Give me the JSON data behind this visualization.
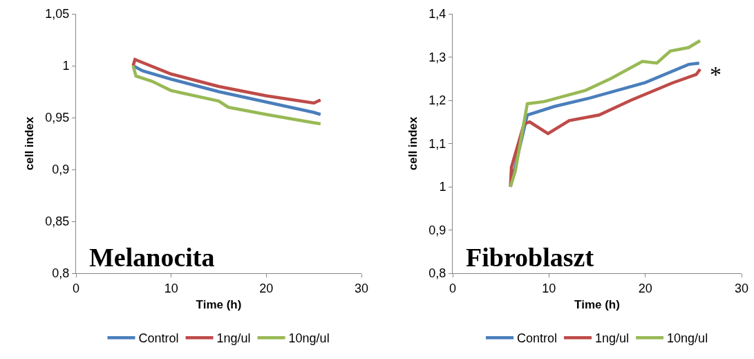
{
  "chart_data": [
    {
      "type": "line",
      "xlabel": "Time (h)",
      "ylabel": "cell index",
      "annotations": [
        "Melanocita"
      ],
      "legend": "bottom",
      "grid": false,
      "marker": "none",
      "line_style": "solid",
      "xlim": [
        0,
        30
      ],
      "xticks": [
        0,
        10,
        20,
        30
      ],
      "ylim": [
        0.8,
        1.05
      ],
      "yticks": [
        {
          "value": 0.8,
          "label": "0,8"
        },
        {
          "value": 0.85,
          "label": "0,85"
        },
        {
          "value": 0.9,
          "label": "0,9"
        },
        {
          "value": 0.95,
          "label": "0,95"
        },
        {
          "value": 1,
          "label": "1"
        },
        {
          "value": 1.05,
          "label": "1,05"
        }
      ],
      "series": [
        {
          "name": "Control",
          "color": "#4a7ebb",
          "x": [
            6,
            7,
            10,
            15,
            20,
            25,
            25.7
          ],
          "values": [
            1.0,
            0.995,
            0.987,
            0.975,
            0.965,
            0.955,
            0.953
          ]
        },
        {
          "name": "1ng/ul",
          "color": "#be4b48",
          "x": [
            6,
            6.2,
            7,
            10,
            15,
            20,
            25,
            25.7
          ],
          "values": [
            1.0,
            1.006,
            1.003,
            0.992,
            0.98,
            0.971,
            0.964,
            0.967
          ]
        },
        {
          "name": "10ng/ul",
          "color": "#98b954",
          "x": [
            6,
            6.3,
            8,
            10,
            15,
            16,
            20,
            25,
            25.7
          ],
          "values": [
            1.0,
            0.99,
            0.985,
            0.976,
            0.966,
            0.96,
            0.953,
            0.945,
            0.944
          ]
        }
      ]
    },
    {
      "type": "line",
      "xlabel": "Time (h)",
      "ylabel": "cell index",
      "annotations": [
        "Fibroblaszt",
        {
          "text": "*",
          "x": 25.7,
          "y": 1.26
        }
      ],
      "legend": "bottom",
      "grid": false,
      "marker": "none",
      "line_style": "solid",
      "xlim": [
        0,
        30
      ],
      "xticks": [
        0,
        10,
        20,
        30
      ],
      "ylim": [
        0.8,
        1.4
      ],
      "yticks": [
        {
          "value": 0.8,
          "label": "0,8"
        },
        {
          "value": 0.9,
          "label": "0,9"
        },
        {
          "value": 1,
          "label": "1"
        },
        {
          "value": 1.1,
          "label": "1,1"
        },
        {
          "value": 1.2,
          "label": "1,2"
        },
        {
          "value": 1.3,
          "label": "1,3"
        },
        {
          "value": 1.4,
          "label": "1,4"
        }
      ],
      "series": [
        {
          "name": "Control",
          "color": "#4a7ebb",
          "x": [
            6,
            7.75,
            10.6,
            14.2,
            20,
            24.5,
            25.6
          ],
          "values": [
            1.0,
            1.166,
            1.186,
            1.205,
            1.241,
            1.283,
            1.286
          ]
        },
        {
          "name": "1ng/ul",
          "color": "#be4b48",
          "x": [
            6,
            6.1,
            7.4,
            8.0,
            9.9,
            12.1,
            15.2,
            18.5,
            22.8,
            25.3,
            25.7
          ],
          "values": [
            1.0,
            1.045,
            1.145,
            1.15,
            1.123,
            1.153,
            1.166,
            1.2,
            1.24,
            1.26,
            1.272
          ]
        },
        {
          "name": "10ng/ul",
          "color": "#98b954",
          "x": [
            6,
            6.5,
            7.75,
            9.5,
            13.8,
            16.4,
            19.7,
            21.2,
            22.6,
            24.5,
            25.7
          ],
          "values": [
            1.0,
            1.036,
            1.192,
            1.197,
            1.223,
            1.25,
            1.29,
            1.286,
            1.314,
            1.322,
            1.338
          ]
        }
      ]
    }
  ]
}
